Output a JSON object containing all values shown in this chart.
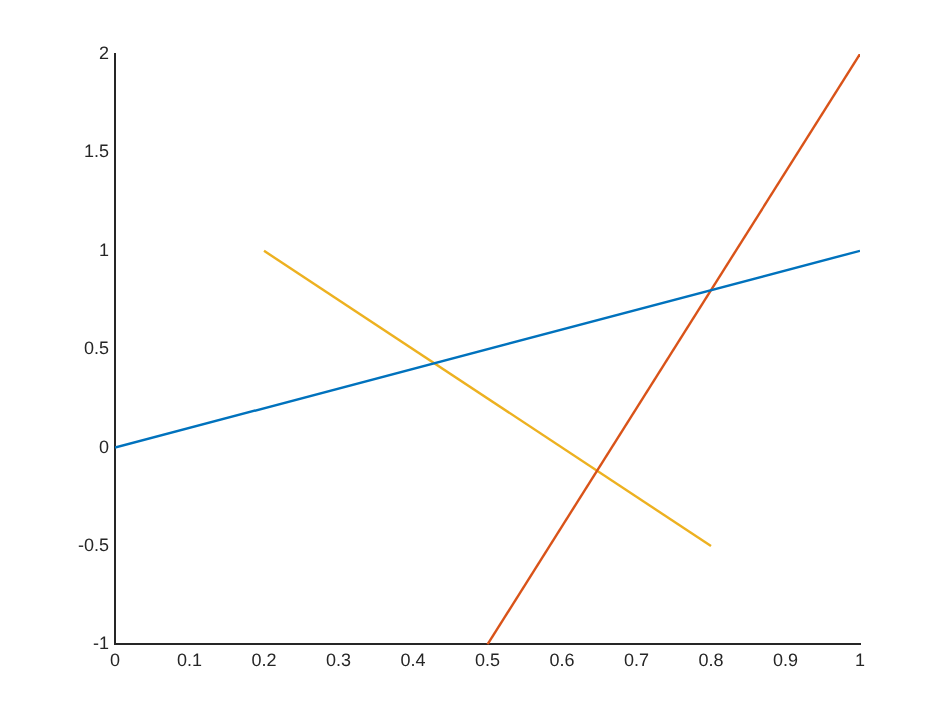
{
  "chart_data": {
    "type": "line",
    "xlim": [
      0,
      1
    ],
    "xticks": [
      0,
      0.1,
      0.2,
      0.3,
      0.4,
      0.5,
      0.6,
      0.7,
      0.8,
      0.9,
      1
    ],
    "ylim": [
      -1,
      2
    ],
    "yticks": [
      -1,
      -0.5,
      0,
      0.5,
      1,
      1.5,
      2
    ],
    "grid": false,
    "legend": false,
    "marker": "none",
    "line_style": "solid",
    "series": [
      {
        "color": "#0072bd",
        "x": [
          0,
          1
        ],
        "values": [
          0,
          1
        ]
      },
      {
        "color": "#d95319",
        "x": [
          0.5,
          1
        ],
        "values": [
          -1,
          2
        ]
      },
      {
        "color": "#edb120",
        "x": [
          0.2,
          0.8
        ],
        "values": [
          1,
          -0.5
        ]
      }
    ]
  }
}
